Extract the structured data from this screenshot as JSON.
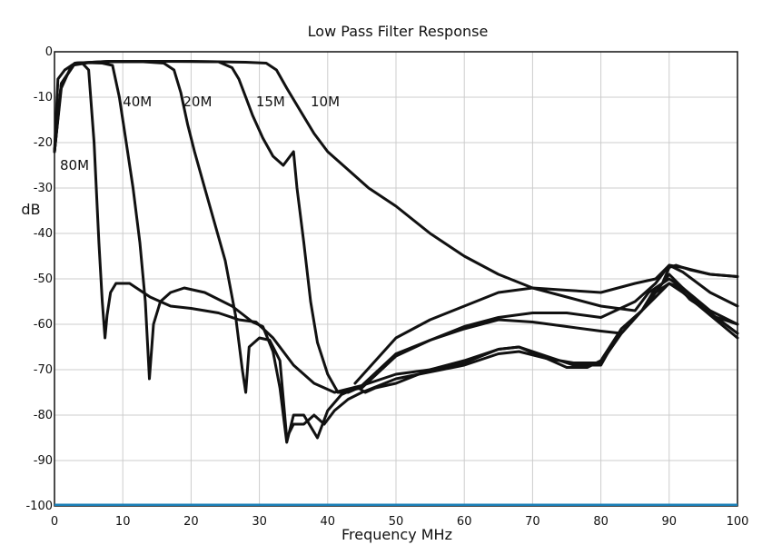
{
  "chart_data": {
    "type": "line",
    "title": "Low Pass Filter Response",
    "xlabel": "Frequency MHz",
    "ylabel": "dB",
    "xlim": [
      0,
      100
    ],
    "ylim": [
      -100,
      0
    ],
    "grid": true,
    "x_ticks": [
      "0",
      "10",
      "20",
      "30",
      "40",
      "50",
      "60",
      "70",
      "80",
      "90",
      "100"
    ],
    "y_ticks": [
      "0",
      "-10",
      "-20",
      "-30",
      "-40",
      "-50",
      "-60",
      "-70",
      "-80",
      "-90",
      "-100"
    ],
    "colors": {
      "line": "#111111",
      "grid": "#cccccc",
      "baseline": "#1a7fb7"
    },
    "series": [
      {
        "name": "80M",
        "label_at": [
          0.8,
          -26
        ],
        "points": [
          [
            0,
            -22
          ],
          [
            0.5,
            -6
          ],
          [
            1.5,
            -4
          ],
          [
            3,
            -2.5
          ],
          [
            4,
            -2.4
          ],
          [
            5,
            -4
          ],
          [
            5.8,
            -20
          ],
          [
            6.5,
            -42
          ],
          [
            7,
            -55
          ],
          [
            7.4,
            -63
          ],
          [
            7.7,
            -58
          ],
          [
            8.2,
            -53
          ],
          [
            9,
            -51
          ],
          [
            11,
            -51
          ],
          [
            14,
            -54
          ],
          [
            17,
            -56
          ],
          [
            20,
            -56.5
          ],
          [
            24,
            -57.5
          ],
          [
            27,
            -59
          ],
          [
            29.5,
            -59.5
          ],
          [
            32,
            -63
          ],
          [
            35,
            -69
          ],
          [
            38,
            -73
          ],
          [
            41,
            -75
          ],
          [
            45,
            -73.5
          ],
          [
            50,
            -66.5
          ],
          [
            55,
            -63.5
          ],
          [
            60,
            -61
          ],
          [
            65,
            -59
          ],
          [
            70,
            -59.5
          ],
          [
            75,
            -60.5
          ],
          [
            80,
            -61.5
          ],
          [
            83,
            -62
          ],
          [
            86,
            -57
          ],
          [
            88,
            -52
          ],
          [
            90,
            -50
          ],
          [
            91,
            -51
          ],
          [
            93,
            -54.5
          ],
          [
            96,
            -57.5
          ],
          [
            100,
            -62
          ]
        ]
      },
      {
        "name": "40M",
        "label_at": [
          10,
          -12
        ],
        "points": [
          [
            0,
            -22
          ],
          [
            1,
            -8
          ],
          [
            2.5,
            -3
          ],
          [
            5,
            -2.4
          ],
          [
            7,
            -2.5
          ],
          [
            8.5,
            -3
          ],
          [
            9.5,
            -10
          ],
          [
            10.5,
            -20
          ],
          [
            11.5,
            -30
          ],
          [
            12.5,
            -42
          ],
          [
            13.3,
            -55
          ],
          [
            13.9,
            -72
          ],
          [
            14.5,
            -60
          ],
          [
            15.5,
            -55
          ],
          [
            17,
            -53
          ],
          [
            19,
            -52
          ],
          [
            22,
            -53
          ],
          [
            26,
            -56
          ],
          [
            29,
            -59.5
          ],
          [
            30.5,
            -60.5
          ],
          [
            32,
            -66
          ],
          [
            33,
            -74
          ],
          [
            34,
            -86
          ],
          [
            35,
            -80
          ],
          [
            36.5,
            -80
          ],
          [
            38.5,
            -85
          ],
          [
            40,
            -79
          ],
          [
            42,
            -75.5
          ],
          [
            45,
            -73.5
          ],
          [
            50,
            -71
          ],
          [
            55,
            -70
          ],
          [
            60,
            -68
          ],
          [
            65,
            -65.5
          ],
          [
            68,
            -65
          ],
          [
            72,
            -67
          ],
          [
            76,
            -69
          ],
          [
            80,
            -69
          ],
          [
            83,
            -61
          ],
          [
            86,
            -57
          ],
          [
            88,
            -53
          ],
          [
            90,
            -49
          ],
          [
            92,
            -52
          ],
          [
            96,
            -58
          ],
          [
            100,
            -60
          ]
        ]
      },
      {
        "name": "20M",
        "label_at": [
          18.8,
          -12
        ],
        "points": [
          [
            0,
            -22
          ],
          [
            1,
            -7
          ],
          [
            3,
            -2.5
          ],
          [
            8,
            -2.2
          ],
          [
            13,
            -2.2
          ],
          [
            16,
            -2.5
          ],
          [
            17.5,
            -4
          ],
          [
            18.5,
            -9
          ],
          [
            19.5,
            -16
          ],
          [
            20.5,
            -22
          ],
          [
            22,
            -30
          ],
          [
            23.5,
            -38
          ],
          [
            25,
            -46
          ],
          [
            26.5,
            -58
          ],
          [
            27.5,
            -70
          ],
          [
            28,
            -75
          ],
          [
            28.5,
            -65
          ],
          [
            30,
            -63
          ],
          [
            31.5,
            -63.5
          ],
          [
            33,
            -68
          ],
          [
            34,
            -85
          ],
          [
            35,
            -82
          ],
          [
            36.5,
            -82
          ],
          [
            38,
            -80
          ],
          [
            39.5,
            -82
          ],
          [
            41,
            -79
          ],
          [
            43,
            -76.5
          ],
          [
            45,
            -75
          ],
          [
            50,
            -72
          ],
          [
            55,
            -70.5
          ],
          [
            60,
            -69
          ],
          [
            65,
            -66.5
          ],
          [
            68,
            -66
          ],
          [
            72,
            -67.5
          ],
          [
            76,
            -68.5
          ],
          [
            80,
            -68.5
          ],
          [
            83,
            -62
          ],
          [
            86,
            -57
          ],
          [
            88,
            -53
          ],
          [
            90,
            -51
          ],
          [
            92,
            -53
          ],
          [
            96,
            -58
          ],
          [
            100,
            -63
          ]
        ]
      },
      {
        "name": "15M",
        "label_at": [
          29.5,
          -12
        ],
        "points": [
          [
            0,
            -22
          ],
          [
            1,
            -7
          ],
          [
            3,
            -2.5
          ],
          [
            8,
            -2.1
          ],
          [
            15,
            -2.1
          ],
          [
            24,
            -2.2
          ],
          [
            26,
            -3.5
          ],
          [
            27,
            -6
          ],
          [
            28,
            -10
          ],
          [
            29,
            -14
          ],
          [
            30.5,
            -19
          ],
          [
            32,
            -23
          ],
          [
            33.5,
            -25
          ],
          [
            34.5,
            -23
          ],
          [
            35,
            -22
          ],
          [
            35.5,
            -30
          ],
          [
            36.5,
            -42
          ],
          [
            37.5,
            -55
          ],
          [
            38.5,
            -64
          ],
          [
            40,
            -71
          ],
          [
            41.5,
            -75
          ],
          [
            43,
            -75
          ],
          [
            44.5,
            -74
          ],
          [
            45.5,
            -75
          ],
          [
            47,
            -74
          ],
          [
            50,
            -73
          ],
          [
            55,
            -70
          ],
          [
            60,
            -68.5
          ],
          [
            65,
            -65.5
          ],
          [
            68,
            -65
          ],
          [
            72,
            -67.5
          ],
          [
            75,
            -69.5
          ],
          [
            78,
            -69.5
          ],
          [
            80,
            -68
          ],
          [
            83,
            -61
          ],
          [
            86,
            -57
          ],
          [
            88,
            -54
          ],
          [
            90,
            -51
          ],
          [
            92,
            -52
          ],
          [
            96,
            -57
          ],
          [
            100,
            -60
          ]
        ]
      },
      {
        "name": "10M",
        "label_at": [
          37.5,
          -12
        ],
        "points": [
          [
            0,
            -22
          ],
          [
            1,
            -7
          ],
          [
            3,
            -2.5
          ],
          [
            8,
            -2.1
          ],
          [
            20,
            -2.1
          ],
          [
            28,
            -2.3
          ],
          [
            31,
            -2.5
          ],
          [
            32.5,
            -4
          ],
          [
            34,
            -8
          ],
          [
            36,
            -13
          ],
          [
            38,
            -18
          ],
          [
            40,
            -22
          ],
          [
            43,
            -26
          ],
          [
            46,
            -30
          ],
          [
            50,
            -34
          ],
          [
            55,
            -40
          ],
          [
            60,
            -45
          ],
          [
            65,
            -49
          ],
          [
            70,
            -52
          ],
          [
            75,
            -54
          ],
          [
            80,
            -56
          ],
          [
            85,
            -57
          ],
          [
            87,
            -53
          ],
          [
            89,
            -51
          ],
          [
            90,
            -47.5
          ],
          [
            91,
            -47
          ],
          [
            93,
            -48
          ],
          [
            96,
            -49
          ],
          [
            100,
            -49.5
          ]
        ]
      },
      {
        "name": "",
        "points": [
          [
            41.5,
            -75
          ],
          [
            45,
            -74
          ],
          [
            50,
            -67
          ],
          [
            55,
            -63.5
          ],
          [
            60,
            -60.5
          ],
          [
            65,
            -58.5
          ],
          [
            70,
            -57.5
          ],
          [
            75,
            -57.5
          ],
          [
            80,
            -58.5
          ],
          [
            85,
            -55
          ],
          [
            88,
            -51
          ],
          [
            90,
            -47
          ],
          [
            92,
            -48.5
          ],
          [
            96,
            -53
          ],
          [
            100,
            -56
          ]
        ]
      },
      {
        "name": "",
        "points": [
          [
            44,
            -73
          ],
          [
            50,
            -63
          ],
          [
            55,
            -59
          ],
          [
            60,
            -56
          ],
          [
            65,
            -53
          ],
          [
            70,
            -52
          ],
          [
            75,
            -52.5
          ],
          [
            80,
            -53
          ],
          [
            85,
            -51
          ],
          [
            88,
            -50
          ],
          [
            90,
            -47
          ],
          [
            92,
            -47.5
          ],
          [
            96,
            -49
          ],
          [
            100,
            -49.5
          ]
        ]
      }
    ]
  }
}
